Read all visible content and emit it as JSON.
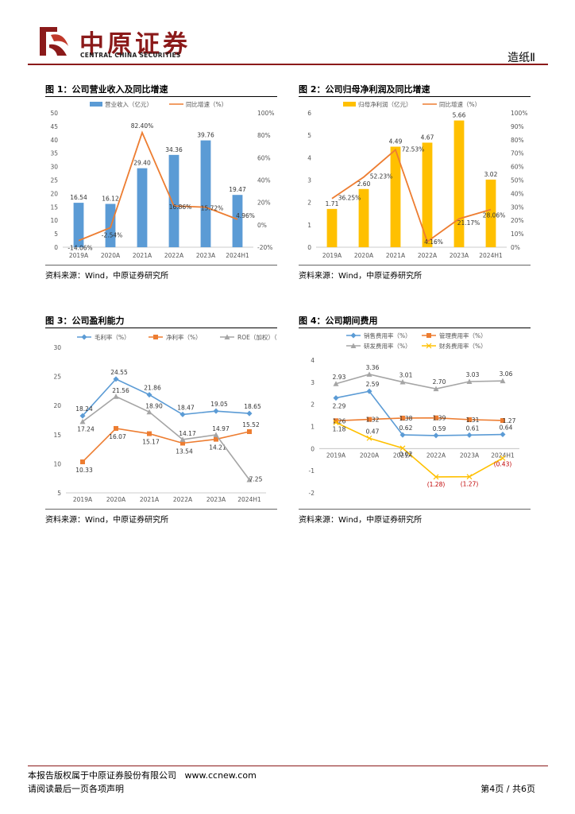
{
  "header": {
    "company_cn": "中原证券",
    "company_en": "CENTRAL CHINA SECURITIES",
    "section": "造纸Ⅱ"
  },
  "colors": {
    "brand": "#8b1a1a",
    "blue": "#5b9bd5",
    "orange": "#ed7d31",
    "gray": "#a5a5a5",
    "gold": "#ffc000"
  },
  "figures": {
    "fig1": {
      "title": "图 1：公司营业收入及同比增速",
      "source": "资料来源：Wind，中原证券研究所"
    },
    "fig2": {
      "title": "图 2：公司归母净利润及同比增速",
      "source": "资料来源：Wind，中原证券研究所"
    },
    "fig3": {
      "title": "图 3：公司盈利能力",
      "source": "资料来源：Wind，中原证券研究所"
    },
    "fig4": {
      "title": "图 4：公司期间费用",
      "source": "资料来源：Wind，中原证券研究所"
    }
  },
  "chart_data": [
    {
      "id": "fig1",
      "type": "bar+line",
      "categories": [
        "2019A",
        "2020A",
        "2021A",
        "2022A",
        "2023A",
        "2024H1"
      ],
      "series": [
        {
          "name": "营业收入（亿元）",
          "type": "bar",
          "axis": "left",
          "values": [
            16.54,
            16.12,
            29.4,
            34.36,
            39.76,
            19.47
          ],
          "labels": [
            "16.54",
            "16.12",
            "29.40",
            "34.36",
            "39.76",
            "19.47"
          ]
        },
        {
          "name": "同比增速（%）",
          "type": "line",
          "axis": "right",
          "values": [
            -14.06,
            -2.54,
            82.4,
            16.86,
            15.72,
            4.96
          ],
          "labels": [
            "-14.06%",
            "-2.54%",
            "82.40%",
            "16.86%",
            "15.72%",
            "4.96%"
          ]
        }
      ],
      "ylim_left": [
        0,
        50
      ],
      "yticks_left": [
        "0",
        "5",
        "10",
        "15",
        "20",
        "25",
        "30",
        "35",
        "40",
        "45",
        "50"
      ],
      "ylim_right": [
        -20,
        100
      ],
      "yticks_right": [
        "-20%",
        "0%",
        "20%",
        "40%",
        "60%",
        "80%",
        "100%"
      ]
    },
    {
      "id": "fig2",
      "type": "bar+line",
      "categories": [
        "2019A",
        "2020A",
        "2021A",
        "2022A",
        "2023A",
        "2024H1"
      ],
      "series": [
        {
          "name": "归母净利润（亿元）",
          "type": "bar",
          "axis": "left",
          "values": [
            1.71,
            2.6,
            4.49,
            4.67,
            5.66,
            3.02
          ],
          "labels": [
            "1.71",
            "2.60",
            "4.49",
            "4.67",
            "5.66",
            "3.02"
          ]
        },
        {
          "name": "同比增速（%）",
          "type": "line",
          "axis": "right",
          "values": [
            36.25,
            52.23,
            72.53,
            4.16,
            21.17,
            28.06
          ],
          "labels": [
            "36.25%",
            "52.23%",
            "72.53%",
            "4.16%",
            "21.17%",
            "28.06%"
          ]
        }
      ],
      "ylim_left": [
        0,
        6
      ],
      "yticks_left": [
        "0",
        "1",
        "2",
        "3",
        "4",
        "5",
        "6"
      ],
      "ylim_right": [
        0,
        100
      ],
      "yticks_right": [
        "0%",
        "10%",
        "20%",
        "30%",
        "40%",
        "50%",
        "60%",
        "70%",
        "80%",
        "90%",
        "100%"
      ]
    },
    {
      "id": "fig3",
      "type": "line",
      "categories": [
        "2019A",
        "2020A",
        "2021A",
        "2022A",
        "2023A",
        "2024H1"
      ],
      "series": [
        {
          "name": "毛利率（%）",
          "marker": "diamond",
          "values": [
            18.24,
            24.55,
            21.86,
            18.47,
            19.05,
            18.65
          ],
          "labels": [
            "18.24",
            "24.55",
            "21.86",
            "18.47",
            "19.05",
            "18.65"
          ]
        },
        {
          "name": "净利率（%）",
          "marker": "square",
          "values": [
            10.33,
            16.07,
            15.17,
            13.54,
            14.21,
            15.52
          ],
          "labels": [
            "10.33",
            "16.07",
            "15.17",
            "13.54",
            "14.21",
            "15.52"
          ]
        },
        {
          "name": "ROE（加权）（%）",
          "marker": "triangle",
          "values": [
            17.24,
            21.56,
            18.9,
            14.17,
            14.97,
            7.25
          ],
          "labels": [
            "17.24",
            "21.56",
            "18.90",
            "14.17",
            "14.97",
            "7.25"
          ]
        }
      ],
      "ylim": [
        5,
        30
      ],
      "yticks": [
        "5",
        "10",
        "15",
        "20",
        "25",
        "30"
      ]
    },
    {
      "id": "fig4",
      "type": "line",
      "categories": [
        "2019A",
        "2020A",
        "2021A",
        "2022A",
        "2023A",
        "2024H1"
      ],
      "series": [
        {
          "name": "销售费用率（%）",
          "marker": "diamond",
          "values": [
            2.29,
            2.59,
            0.62,
            0.59,
            0.61,
            0.64
          ],
          "labels": [
            "2.29",
            "2.59",
            "0.62",
            "0.59",
            "0.61",
            "0.64"
          ]
        },
        {
          "name": "管理费用率（%）",
          "marker": "square",
          "values": [
            1.26,
            1.32,
            1.38,
            1.39,
            1.31,
            1.27
          ],
          "labels": [
            "1.26",
            "1.32",
            "1.38",
            "1.39",
            "1.31",
            "1.27"
          ]
        },
        {
          "name": "研发费用率（%）",
          "marker": "triangle",
          "values": [
            2.93,
            3.36,
            3.01,
            2.7,
            3.03,
            3.06
          ],
          "labels": [
            "2.93",
            "3.36",
            "3.01",
            "2.70",
            "3.03",
            "3.06"
          ]
        },
        {
          "name": "财务费用率（%）",
          "marker": "x",
          "values": [
            1.18,
            0.47,
            0.02,
            -1.28,
            -1.27,
            -0.43
          ],
          "labels": [
            "1.18",
            "0.47",
            "0.02",
            "(1.28)",
            "(1.27)",
            "(0.43)"
          ]
        }
      ],
      "ylim": [
        -2,
        4
      ],
      "yticks": [
        "-2",
        "-1",
        "0",
        "1",
        "2",
        "3",
        "4"
      ]
    }
  ],
  "footer": {
    "line1": "本报告版权属于中原证券股份有限公司",
    "website": "www.ccnew.com",
    "line2": "请阅读最后一页各项声明",
    "page": "第4页 / 共6页"
  }
}
